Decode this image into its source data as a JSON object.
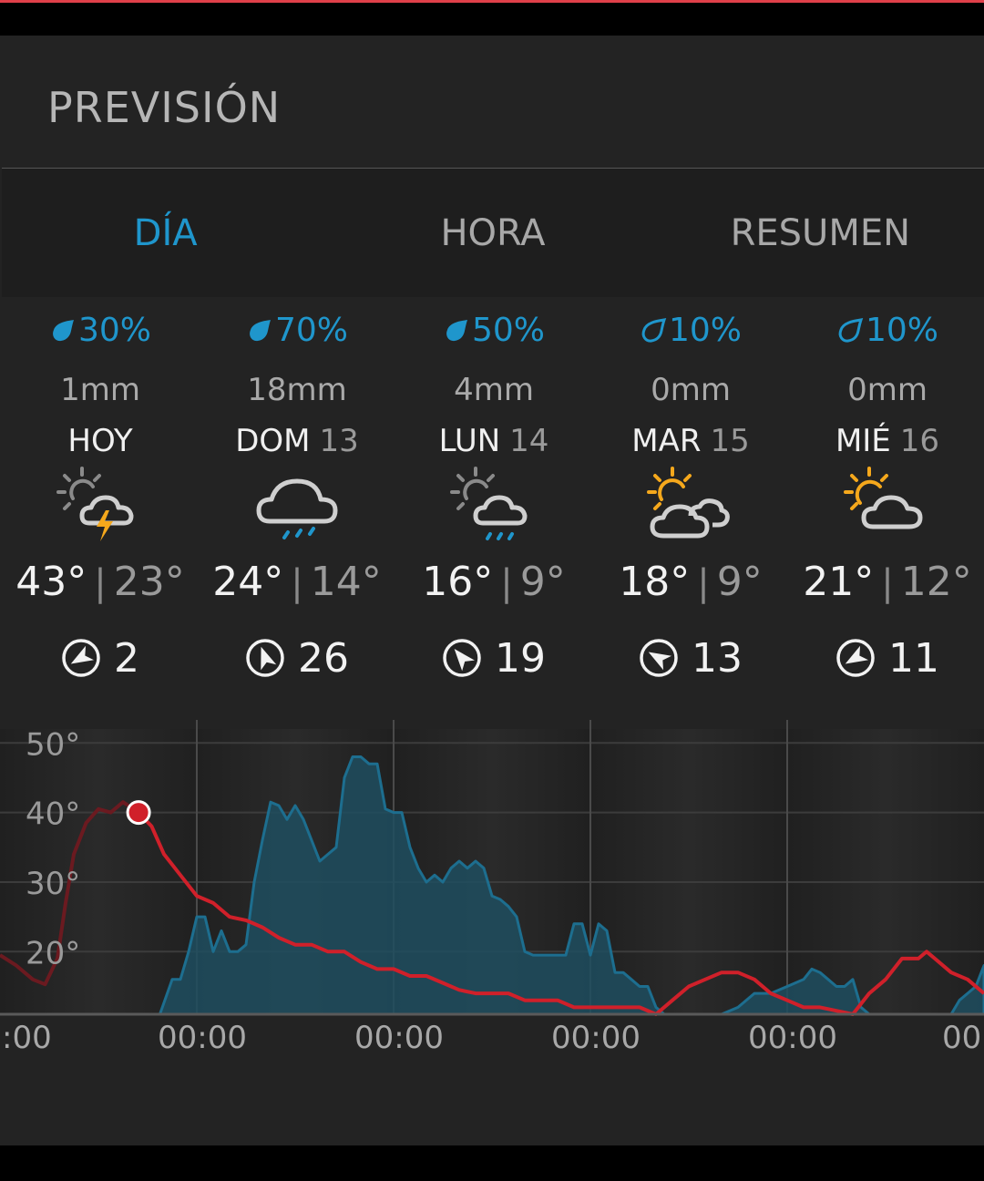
{
  "title": "PREVISIÓN",
  "tabs": [
    {
      "label": "DÍA",
      "active": true
    },
    {
      "label": "HORA",
      "active": false
    },
    {
      "label": "RESUMEN",
      "active": false
    }
  ],
  "colors": {
    "accent": "#1f96cc",
    "temperature_line": "#d0202a",
    "rain_area": "#1f4e5f",
    "sun": "#f5a81c"
  },
  "days": [
    {
      "precip_prob": "30%",
      "precip_amount": "1mm",
      "name": "HOY",
      "date": "",
      "icon": "partly-sunny-storm-icon",
      "high": "43°",
      "low": "23°",
      "wind": "2",
      "wind_dir_deg": 240
    },
    {
      "precip_prob": "70%",
      "precip_amount": "18mm",
      "name": "DOM",
      "date": "13",
      "icon": "rain-cloud-icon",
      "high": "24°",
      "low": "14°",
      "wind": "26",
      "wind_dir_deg": 340
    },
    {
      "precip_prob": "50%",
      "precip_amount": "4mm",
      "name": "LUN",
      "date": "14",
      "icon": "partly-sunny-rain-icon",
      "high": "16°",
      "low": "9°",
      "wind": "19",
      "wind_dir_deg": 320
    },
    {
      "precip_prob": "10%",
      "precip_amount": "0mm",
      "name": "MAR",
      "date": "15",
      "icon": "sun-clouds-icon",
      "high": "18°",
      "low": "9°",
      "wind": "13",
      "wind_dir_deg": 300
    },
    {
      "precip_prob": "10%",
      "precip_amount": "0mm",
      "name": "MIÉ",
      "date": "16",
      "icon": "sun-cloud-icon",
      "high": "21°",
      "low": "12°",
      "wind": "11",
      "wind_dir_deg": 240
    }
  ],
  "chart_data": {
    "type": "line",
    "y_ticks": [
      "50°",
      "40°",
      "30°",
      "20°"
    ],
    "yticks_values": [
      50,
      40,
      30,
      20
    ],
    "ylim": [
      11,
      52
    ],
    "x_labels": [
      ":00",
      "00:00",
      "00:00",
      "00:00",
      "00:00",
      "00"
    ],
    "x_label_hours": [
      0,
      24,
      48,
      72,
      96,
      120
    ],
    "xlim_hours": [
      0,
      120
    ],
    "current_marker": {
      "hour": 16.9,
      "value": 40
    },
    "series": [
      {
        "kind": "temperature-line",
        "color": "#d0202a",
        "points": [
          [
            0,
            19.5
          ],
          [
            2,
            18
          ],
          [
            4,
            16
          ],
          [
            5.5,
            15.3
          ],
          [
            7,
            19
          ],
          [
            8,
            27
          ],
          [
            9,
            34
          ],
          [
            10.5,
            38.5
          ],
          [
            12,
            40.5
          ],
          [
            13.5,
            40
          ],
          [
            15,
            41.5
          ],
          [
            16.9,
            40
          ],
          [
            18.5,
            38
          ],
          [
            20,
            34
          ],
          [
            22,
            31
          ],
          [
            24,
            28
          ],
          [
            26,
            27
          ],
          [
            28,
            25
          ],
          [
            30,
            24.5
          ],
          [
            32,
            23.5
          ],
          [
            34,
            22
          ],
          [
            36,
            21
          ],
          [
            38,
            21
          ],
          [
            40,
            20
          ],
          [
            42,
            20
          ],
          [
            44,
            18.5
          ],
          [
            46,
            17.5
          ],
          [
            48,
            17.5
          ],
          [
            50,
            16.5
          ],
          [
            52,
            16.5
          ],
          [
            54,
            15.5
          ],
          [
            56,
            14.5
          ],
          [
            58,
            14
          ],
          [
            60,
            14
          ],
          [
            62,
            14
          ],
          [
            64,
            13
          ],
          [
            66,
            13
          ],
          [
            68,
            13
          ],
          [
            70,
            12
          ],
          [
            72,
            12
          ],
          [
            74,
            12
          ],
          [
            76,
            12
          ],
          [
            78,
            12
          ],
          [
            80,
            11
          ],
          [
            82,
            13
          ],
          [
            84,
            15
          ],
          [
            86,
            16
          ],
          [
            88,
            17
          ],
          [
            90,
            17
          ],
          [
            92,
            16
          ],
          [
            94,
            14
          ],
          [
            96,
            13
          ],
          [
            98,
            12
          ],
          [
            100,
            12
          ],
          [
            102,
            11.5
          ],
          [
            104,
            11
          ],
          [
            106,
            14
          ],
          [
            108,
            16
          ],
          [
            110,
            19
          ],
          [
            112,
            19
          ],
          [
            113,
            20
          ],
          [
            114,
            19
          ],
          [
            116,
            17
          ],
          [
            118,
            16
          ],
          [
            120,
            14
          ]
        ]
      },
      {
        "kind": "rain-area",
        "color": "#1f4e5f",
        "points": [
          [
            0,
            10
          ],
          [
            19.5,
            10
          ],
          [
            21,
            16
          ],
          [
            22,
            16
          ],
          [
            23,
            20
          ],
          [
            24,
            25
          ],
          [
            25,
            25
          ],
          [
            26,
            20
          ],
          [
            27,
            23
          ],
          [
            28,
            20
          ],
          [
            29,
            20
          ],
          [
            30,
            21
          ],
          [
            31,
            30
          ],
          [
            32,
            36
          ],
          [
            33,
            41.5
          ],
          [
            34,
            41
          ],
          [
            35,
            39
          ],
          [
            36,
            41
          ],
          [
            37,
            39
          ],
          [
            38,
            36
          ],
          [
            39,
            33
          ],
          [
            40,
            34
          ],
          [
            41,
            35
          ],
          [
            42,
            45
          ],
          [
            43,
            48
          ],
          [
            44,
            48
          ],
          [
            45,
            47
          ],
          [
            46,
            47
          ],
          [
            47,
            40.5
          ],
          [
            48,
            40
          ],
          [
            49,
            40
          ],
          [
            50,
            35
          ],
          [
            51,
            32
          ],
          [
            52,
            30
          ],
          [
            53,
            31
          ],
          [
            54,
            30
          ],
          [
            55,
            32
          ],
          [
            56,
            33
          ],
          [
            57,
            32
          ],
          [
            58,
            33
          ],
          [
            59,
            32
          ],
          [
            60,
            28
          ],
          [
            61,
            27.5
          ],
          [
            62,
            26.5
          ],
          [
            63,
            25
          ],
          [
            64,
            20
          ],
          [
            65,
            19.5
          ],
          [
            66,
            19.5
          ],
          [
            67,
            19.5
          ],
          [
            68,
            19.5
          ],
          [
            69,
            19.5
          ],
          [
            70,
            24
          ],
          [
            71,
            24
          ],
          [
            72,
            19.5
          ],
          [
            73,
            24
          ],
          [
            74,
            23
          ],
          [
            75,
            17
          ],
          [
            76,
            17
          ],
          [
            77,
            16
          ],
          [
            78,
            15
          ],
          [
            79,
            15
          ],
          [
            80,
            12
          ],
          [
            81,
            10
          ],
          [
            82,
            10
          ],
          [
            86,
            10
          ],
          [
            87,
            11
          ],
          [
            88,
            11
          ],
          [
            90,
            12
          ],
          [
            92,
            14
          ],
          [
            94,
            14
          ],
          [
            96,
            15
          ],
          [
            97,
            15.5
          ],
          [
            98,
            16
          ],
          [
            99,
            17.5
          ],
          [
            100,
            17
          ],
          [
            101,
            16
          ],
          [
            102,
            15
          ],
          [
            103,
            15
          ],
          [
            104,
            16
          ],
          [
            105,
            12
          ],
          [
            106,
            11
          ],
          [
            108,
            10
          ],
          [
            116,
            10
          ],
          [
            117,
            13
          ],
          [
            118,
            14
          ],
          [
            119,
            15
          ],
          [
            120,
            18
          ],
          [
            120,
            10
          ]
        ]
      }
    ]
  }
}
